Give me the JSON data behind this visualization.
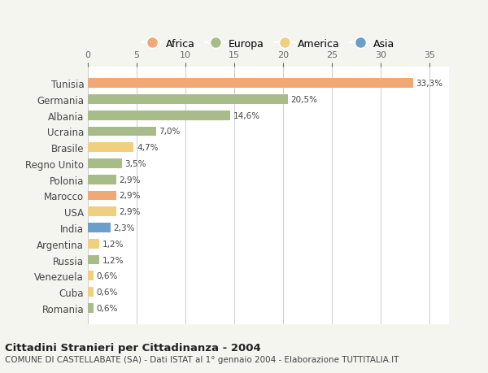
{
  "countries": [
    "Tunisia",
    "Germania",
    "Albania",
    "Ucraina",
    "Brasile",
    "Regno Unito",
    "Polonia",
    "Marocco",
    "USA",
    "India",
    "Argentina",
    "Russia",
    "Venezuela",
    "Cuba",
    "Romania"
  ],
  "values": [
    33.3,
    20.5,
    14.6,
    7.0,
    4.7,
    3.5,
    2.9,
    2.9,
    2.9,
    2.3,
    1.2,
    1.2,
    0.6,
    0.6,
    0.6
  ],
  "labels": [
    "33,3%",
    "20,5%",
    "14,6%",
    "7,0%",
    "4,7%",
    "3,5%",
    "2,9%",
    "2,9%",
    "2,9%",
    "2,3%",
    "1,2%",
    "1,2%",
    "0,6%",
    "0,6%",
    "0,6%"
  ],
  "continents": [
    "Africa",
    "Europa",
    "Europa",
    "Europa",
    "America",
    "Europa",
    "Europa",
    "Africa",
    "America",
    "Asia",
    "America",
    "Europa",
    "America",
    "America",
    "Europa"
  ],
  "colors": {
    "Africa": "#F0A875",
    "Europa": "#A8BC8A",
    "America": "#F0D080",
    "Asia": "#6B9EC8"
  },
  "legend_order": [
    "Africa",
    "Europa",
    "America",
    "Asia"
  ],
  "title": "Cittadini Stranieri per Cittadinanza - 2004",
  "subtitle": "COMUNE DI CASTELLABATE (SA) - Dati ISTAT al 1° gennaio 2004 - Elaborazione TUTTITALIA.IT",
  "xlim": [
    0,
    37
  ],
  "xticks": [
    0,
    5,
    10,
    15,
    20,
    25,
    30,
    35
  ],
  "bg_color": "#F5F5F0",
  "plot_bg_color": "#FFFFFF",
  "grid_color": "#CCCCCC"
}
